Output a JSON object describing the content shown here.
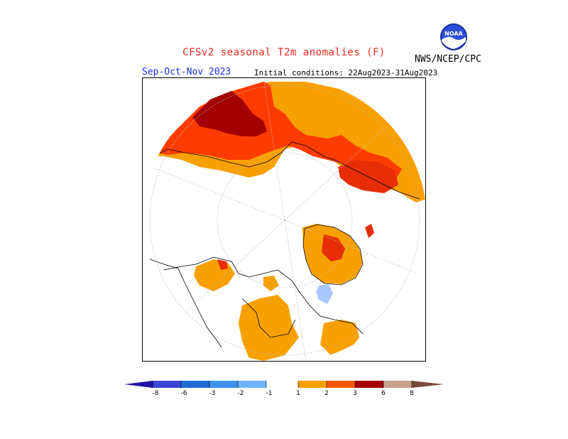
{
  "header": {
    "title": "CFSv2 seasonal T2m anomalies (F)",
    "agency": "NWS/NCEP/CPC",
    "season": "Sep-Oct-Nov 2023",
    "initial_conditions": "Initial conditions: 22Aug2023-31Aug2023",
    "logo_text": "NOAA"
  },
  "map": {
    "projection": "north polar stereographic",
    "variable": "T2m anomalies",
    "units": "F"
  },
  "legend": {
    "ticks": [
      "-8",
      "-6",
      "-3",
      "-2",
      "-1",
      "1",
      "2",
      "3",
      "6",
      "8"
    ],
    "colors": [
      "#2213a8",
      "#3a46d6",
      "#1e6bd6",
      "#3d92ee",
      "#6db4fa",
      "#ffffff",
      "#f8a000",
      "#ff5a00",
      "#e62d05",
      "#a50000",
      "#c8a08c",
      "#7a4a3a"
    ]
  },
  "colors": {
    "orange": "#f8a000",
    "red_orange": "#ff3c00",
    "dark_red": "#a50000",
    "light_blue": "#a6c8ff",
    "title_red": "#e8261d",
    "season_blue": "#1c2ee0"
  }
}
